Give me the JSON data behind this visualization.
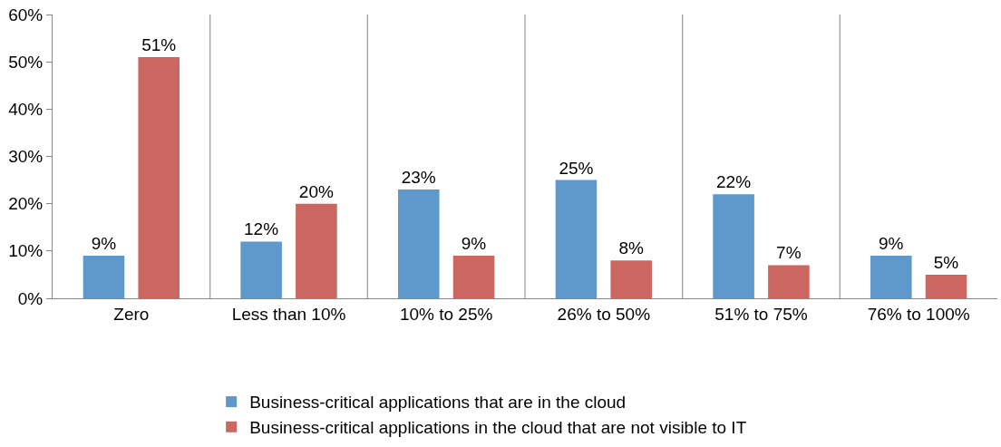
{
  "chart_data": {
    "type": "bar",
    "categories": [
      "Zero",
      "Less than 10%",
      "10% to 25%",
      "26% to 50%",
      "51% to 75%",
      "76% to 100%"
    ],
    "series": [
      {
        "name": "Business-critical applications that are in the cloud",
        "color": "#5f98cb",
        "values": [
          9,
          12,
          23,
          25,
          22,
          9
        ],
        "value_labels": [
          "9%",
          "12%",
          "23%",
          "25%",
          "22%",
          "9%"
        ]
      },
      {
        "name": "Business-critical applications in the cloud that are not visible to IT",
        "color": "#cc6660",
        "values": [
          51,
          20,
          9,
          8,
          7,
          5
        ],
        "value_labels": [
          "51%",
          "20%",
          "9%",
          "8%",
          "7%",
          "5%"
        ]
      }
    ],
    "ylim": [
      0,
      60
    ],
    "yticks": [
      {
        "value": 0,
        "label": "0%"
      },
      {
        "value": 10,
        "label": "10%"
      },
      {
        "value": 20,
        "label": "20%"
      },
      {
        "value": 30,
        "label": "30%"
      },
      {
        "value": 40,
        "label": "40%"
      },
      {
        "value": 50,
        "label": "50%"
      },
      {
        "value": 60,
        "label": "60%"
      }
    ],
    "grid": "x",
    "legend": "bottom"
  }
}
